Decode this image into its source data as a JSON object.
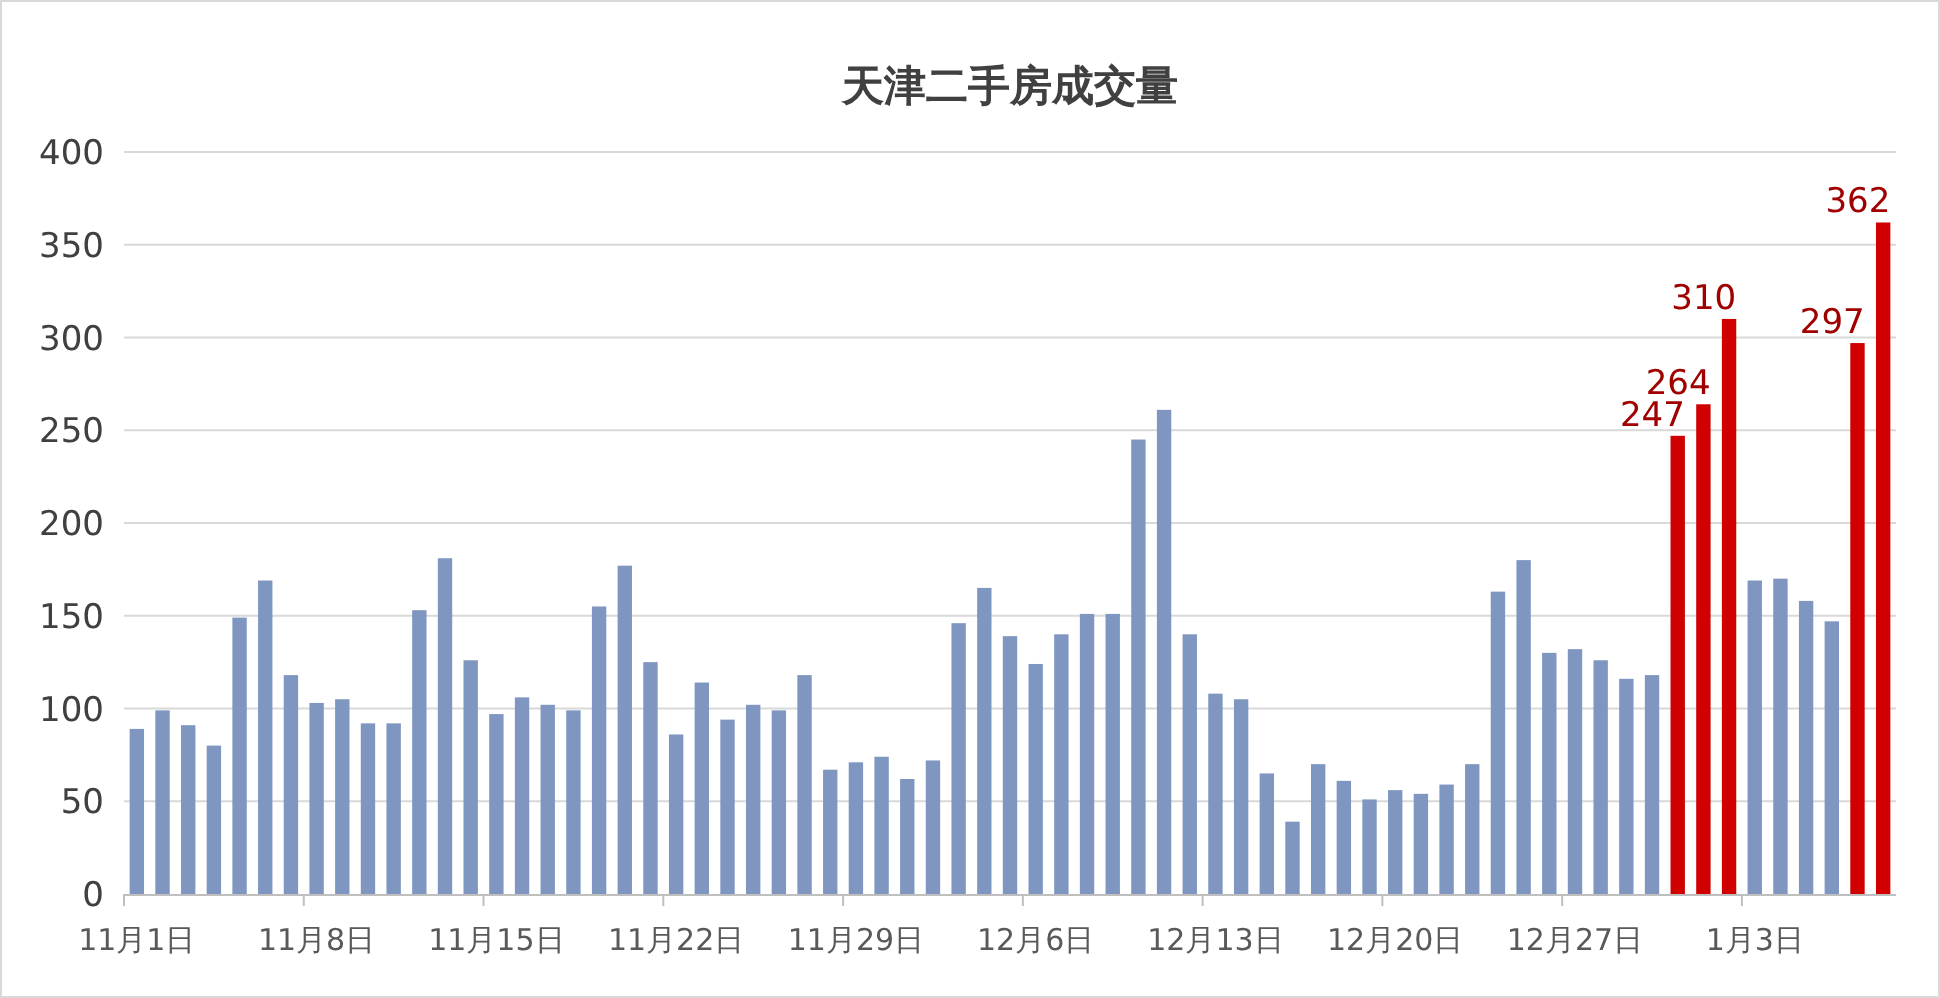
{
  "chart_data": {
    "type": "bar",
    "title": "天津二手房成交量",
    "categories": [
      "11月1日",
      null,
      null,
      null,
      null,
      null,
      null,
      "11月8日",
      null,
      null,
      null,
      null,
      null,
      null,
      "11月15日",
      null,
      null,
      null,
      null,
      null,
      null,
      "11月22日",
      null,
      null,
      null,
      null,
      null,
      null,
      "11月29日",
      null,
      null,
      null,
      null,
      null,
      null,
      "12月6日",
      null,
      null,
      null,
      null,
      null,
      null,
      "12月13日",
      null,
      null,
      null,
      null,
      null,
      null,
      "12月20日",
      null,
      null,
      null,
      null,
      null,
      null,
      "12月27日",
      null,
      null,
      null,
      null,
      null,
      null,
      "1月3日",
      null,
      null,
      null,
      null,
      null
    ],
    "values": [
      89,
      99,
      91,
      80,
      149,
      169,
      118,
      103,
      105,
      92,
      92,
      153,
      181,
      126,
      97,
      106,
      102,
      99,
      155,
      177,
      125,
      86,
      114,
      94,
      102,
      99,
      118,
      67,
      71,
      74,
      62,
      72,
      146,
      165,
      139,
      124,
      140,
      151,
      151,
      245,
      261,
      140,
      108,
      105,
      65,
      39,
      70,
      61,
      51,
      56,
      54,
      59,
      70,
      163,
      180,
      130,
      132,
      126,
      116,
      118,
      247,
      264,
      310,
      169,
      170,
      158,
      147,
      297,
      362
    ],
    "colors": [
      "#7f97c0",
      "#7f97c0",
      "#7f97c0",
      "#7f97c0",
      "#7f97c0",
      "#7f97c0",
      "#7f97c0",
      "#7f97c0",
      "#7f97c0",
      "#7f97c0",
      "#7f97c0",
      "#7f97c0",
      "#7f97c0",
      "#7f97c0",
      "#7f97c0",
      "#7f97c0",
      "#7f97c0",
      "#7f97c0",
      "#7f97c0",
      "#7f97c0",
      "#7f97c0",
      "#7f97c0",
      "#7f97c0",
      "#7f97c0",
      "#7f97c0",
      "#7f97c0",
      "#7f97c0",
      "#7f97c0",
      "#7f97c0",
      "#7f97c0",
      "#7f97c0",
      "#7f97c0",
      "#7f97c0",
      "#7f97c0",
      "#7f97c0",
      "#7f97c0",
      "#7f97c0",
      "#7f97c0",
      "#7f97c0",
      "#7f97c0",
      "#7f97c0",
      "#7f97c0",
      "#7f97c0",
      "#7f97c0",
      "#7f97c0",
      "#7f97c0",
      "#7f97c0",
      "#7f97c0",
      "#7f97c0",
      "#7f97c0",
      "#7f97c0",
      "#7f97c0",
      "#7f97c0",
      "#7f97c0",
      "#7f97c0",
      "#7f97c0",
      "#7f97c0",
      "#7f97c0",
      "#7f97c0",
      "#7f97c0",
      "#d00000",
      "#d00000",
      "#d00000",
      "#7f97c0",
      "#7f97c0",
      "#7f97c0",
      "#7f97c0",
      "#d00000",
      "#d00000"
    ],
    "value_labels": [
      null,
      null,
      null,
      null,
      null,
      null,
      null,
      null,
      null,
      null,
      null,
      null,
      null,
      null,
      null,
      null,
      null,
      null,
      null,
      null,
      null,
      null,
      null,
      null,
      null,
      null,
      null,
      null,
      null,
      null,
      null,
      null,
      null,
      null,
      null,
      null,
      null,
      null,
      null,
      null,
      null,
      null,
      null,
      null,
      null,
      null,
      null,
      null,
      null,
      null,
      null,
      null,
      null,
      null,
      null,
      null,
      null,
      null,
      null,
      null,
      "247",
      "264",
      "310",
      null,
      null,
      null,
      null,
      "297",
      "362"
    ],
    "ylim": [
      0,
      400
    ],
    "yticks": [
      0,
      50,
      100,
      150,
      200,
      250,
      300,
      350,
      400
    ],
    "grid": "y"
  }
}
